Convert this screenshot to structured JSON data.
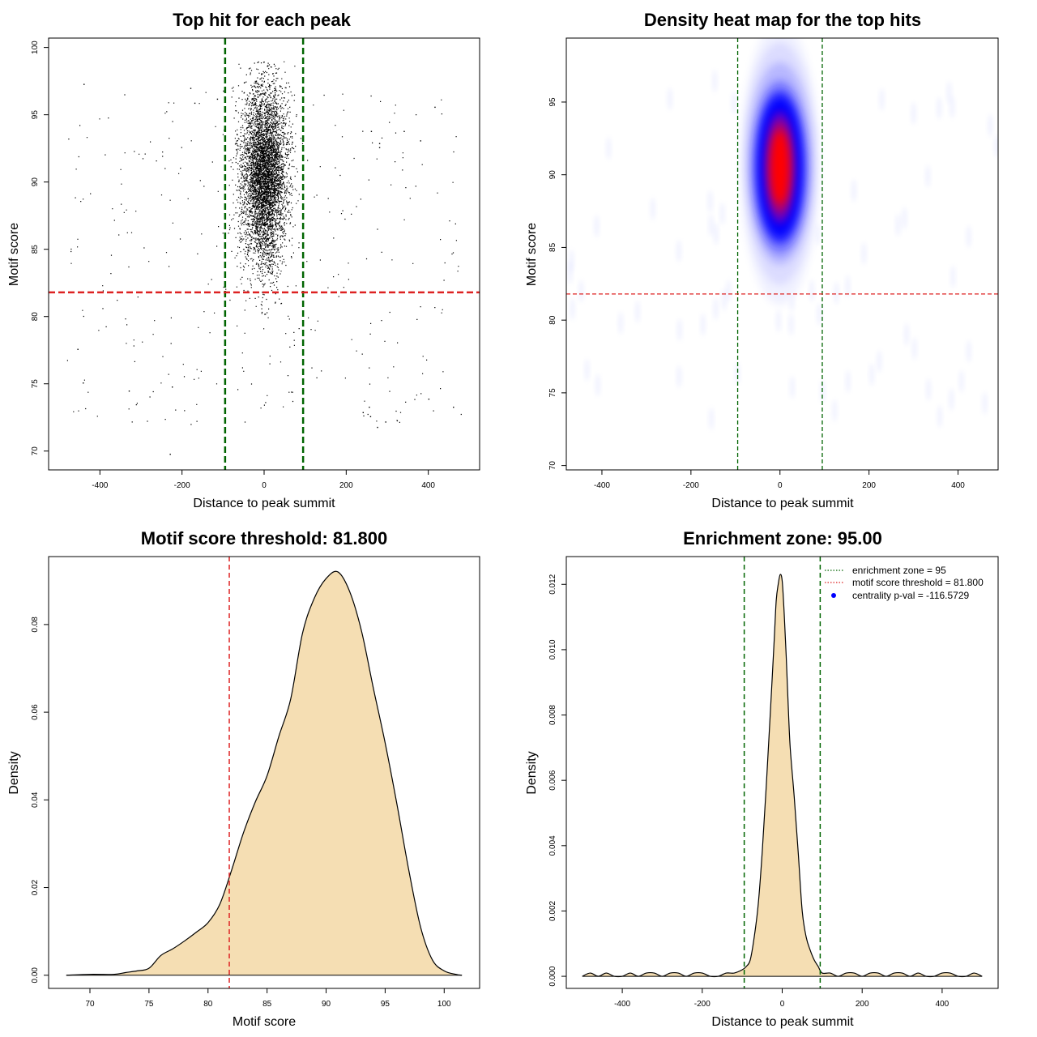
{
  "chart_data": [
    {
      "type": "scatter",
      "title": "Top hit for each peak",
      "xlabel": "Distance to peak summit",
      "ylabel": "Motif score",
      "xlim": [
        -525,
        525
      ],
      "ylim": [
        68.6,
        100.7
      ],
      "xticks": [
        -400,
        -200,
        0,
        200,
        400
      ],
      "yticks": [
        70,
        75,
        80,
        85,
        90,
        95,
        100
      ],
      "vlines": [
        -95,
        95
      ],
      "hline": 81.8,
      "vline_color": "#006400",
      "hline_color": "#dd2222",
      "point_color": "#000000",
      "cluster": {
        "center_x": 0,
        "sd_x": 28,
        "mean_y": 90.5,
        "sd_y": 3.3,
        "y_max": 99,
        "count": 5200
      },
      "background": {
        "x_range": [
          -480,
          480
        ],
        "y_range": [
          72,
          97
        ],
        "count": 320
      },
      "points": [
        [
          -440,
          97.3
        ],
        [
          -230,
          69.8
        ],
        [
          -225,
          74.8
        ],
        [
          -455,
          77.6
        ],
        [
          -442,
          75.1
        ],
        [
          -330,
          74.5
        ],
        [
          415,
          95.6
        ],
        [
          275,
          71.8
        ],
        [
          295,
          72.2
        ],
        [
          258,
          72.6
        ],
        [
          240,
          72.9
        ],
        [
          400,
          73.9
        ],
        [
          460,
          73.3
        ],
        [
          255,
          73.3
        ],
        [
          340,
          93.8
        ],
        [
          380,
          93.1
        ],
        [
          280,
          92.9
        ],
        [
          280,
          92.6
        ],
        [
          260,
          93.8
        ],
        [
          -115,
          96.2
        ],
        [
          -100,
          96.8
        ],
        [
          -180,
          97.0
        ],
        [
          -170,
          95.9
        ]
      ]
    },
    {
      "type": "heatmap",
      "title": "Density heat map for the top hits",
      "xlabel": "Distance to peak summit",
      "ylabel": "Motif score",
      "xlim": [
        -480,
        490
      ],
      "ylim": [
        69.7,
        99.4
      ],
      "xticks": [
        -400,
        -200,
        0,
        200,
        400
      ],
      "yticks": [
        70,
        75,
        80,
        85,
        90,
        95
      ],
      "vlines": [
        -95,
        95
      ],
      "hline": 81.8,
      "colors": [
        "#ffffff",
        "#0000ff",
        "#ff0000"
      ],
      "vline_color": "#006400",
      "hline_color": "#dd2222",
      "peak": {
        "x": 0,
        "y": 90.5
      }
    },
    {
      "type": "area",
      "title": "Motif score threshold: 81.800",
      "xlabel": "Motif score",
      "ylabel": "Density",
      "xlim": [
        66.5,
        103
      ],
      "ylim": [
        -0.003,
        0.0955
      ],
      "xticks": [
        70,
        75,
        80,
        85,
        90,
        95,
        100
      ],
      "yticks": [
        0.0,
        0.02,
        0.04,
        0.06,
        0.08
      ],
      "ytick_labels": [
        "0.00",
        "0.02",
        "0.04",
        "0.06",
        "0.08"
      ],
      "fill": "#f5deb3",
      "vlines": [
        81.8
      ],
      "vline_color": "#dd2222",
      "x": [
        68,
        70,
        72,
        73,
        74,
        75,
        76,
        77,
        78,
        79,
        80,
        81,
        82,
        83,
        84,
        85,
        86,
        87,
        88,
        89,
        90,
        91,
        92,
        93,
        94,
        95,
        96,
        97,
        98,
        99,
        100,
        101,
        101.5
      ],
      "y": [
        0,
        0.0002,
        0.0002,
        0.0006,
        0.001,
        0.0016,
        0.0045,
        0.006,
        0.0078,
        0.0098,
        0.012,
        0.0162,
        0.024,
        0.0325,
        0.0395,
        0.0455,
        0.0545,
        0.063,
        0.078,
        0.086,
        0.0905,
        0.092,
        0.0875,
        0.0785,
        0.0655,
        0.053,
        0.039,
        0.024,
        0.011,
        0.0035,
        0.001,
        0.0002,
        0
      ]
    },
    {
      "type": "area",
      "title": "Enrichment zone: 95.00",
      "xlabel": "Distance to peak summit",
      "ylabel": "Density",
      "xlim": [
        -540,
        540
      ],
      "ylim": [
        -0.00037,
        0.01285
      ],
      "xticks": [
        -400,
        -200,
        0,
        200,
        400
      ],
      "yticks": [
        0.0,
        0.002,
        0.004,
        0.006,
        0.008,
        0.01,
        0.012
      ],
      "ytick_labels": [
        "0.000",
        "0.002",
        "0.004",
        "0.006",
        "0.008",
        "0.010",
        "0.012"
      ],
      "fill": "#f5deb3",
      "vlines": [
        -95,
        95
      ],
      "vline_color": "#006400",
      "x": [
        -500,
        -480,
        -460,
        -440,
        -420,
        -400,
        -380,
        -360,
        -340,
        -320,
        -300,
        -280,
        -260,
        -240,
        -220,
        -200,
        -180,
        -160,
        -140,
        -120,
        -100,
        -90,
        -80,
        -70,
        -60,
        -50,
        -40,
        -30,
        -20,
        -15,
        -10,
        -5,
        0,
        5,
        10,
        15,
        20,
        30,
        40,
        50,
        60,
        70,
        80,
        90,
        100,
        120,
        140,
        160,
        180,
        200,
        220,
        240,
        260,
        280,
        300,
        320,
        340,
        360,
        380,
        400,
        420,
        440,
        460,
        480,
        500
      ],
      "y": [
        0,
        0.0001,
        0,
        0.0001,
        0,
        0,
        0.0001,
        0,
        0.0001,
        0.0001,
        0,
        0.0001,
        0.0001,
        0,
        0.0001,
        0.0001,
        0,
        0,
        0.0001,
        0.0001,
        0.0002,
        0.0003,
        0.0005,
        0.0012,
        0.0022,
        0.0038,
        0.0058,
        0.008,
        0.0103,
        0.0115,
        0.012,
        0.0123,
        0.0121,
        0.0111,
        0.0098,
        0.0083,
        0.007,
        0.0055,
        0.0038,
        0.002,
        0.0012,
        0.0008,
        0.0005,
        0.0003,
        0.0001,
        0.0001,
        0,
        0.0001,
        0.0001,
        0,
        0.0001,
        0.0001,
        0,
        0.0001,
        0.0001,
        0,
        0.0001,
        0,
        0,
        0.0001,
        0.0001,
        0,
        0,
        0.0001,
        0
      ],
      "legend": {
        "position": "top-right",
        "items": [
          {
            "label": "enrichment zone = 95",
            "kind": "dotted",
            "color": "#006400"
          },
          {
            "label": "motif score threshold = 81.800",
            "kind": "dotted",
            "color": "#dd2222"
          },
          {
            "label": "centrality p-val = -116.5729",
            "kind": "point",
            "color": "#0000ff"
          }
        ]
      }
    }
  ]
}
